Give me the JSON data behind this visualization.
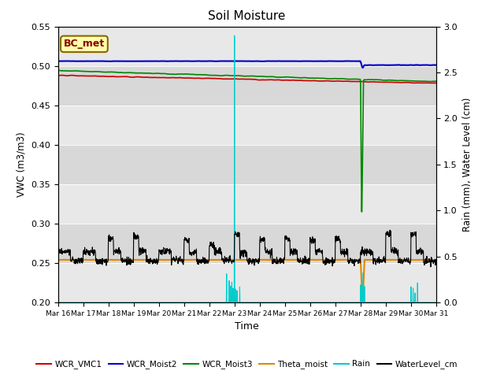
{
  "title": "Soil Moisture",
  "ylabel_left": "VWC (m3/m3)",
  "ylabel_right": "Rain (mm), Water Level (cm)",
  "xlabel": "Time",
  "ylim_left": [
    0.2,
    0.55
  ],
  "ylim_right": [
    0.0,
    3.0
  ],
  "background_color": "#e8e8e8",
  "band_colors": [
    "#e8e8e8",
    "#d8d8d8"
  ],
  "legend_labels": [
    "WCR_VMC1",
    "WCR_Moist2",
    "WCR_Moist3",
    "Theta_moist",
    "Rain",
    "WaterLevel_cm"
  ],
  "legend_colors": [
    "#cc0000",
    "#0000cc",
    "#008800",
    "#dd8800",
    "#00cccc",
    "#000000"
  ],
  "bc_met_box_facecolor": "#ffffaa",
  "bc_met_box_edgecolor": "#886600",
  "bc_met_text_color": "#880000",
  "tick_label_fontsize": 8,
  "title_fontsize": 11,
  "yticks_left": [
    0.2,
    0.25,
    0.3,
    0.35,
    0.4,
    0.45,
    0.5,
    0.55
  ],
  "yticks_right": [
    0.0,
    0.5,
    1.0,
    1.5,
    2.0,
    2.5,
    3.0
  ]
}
